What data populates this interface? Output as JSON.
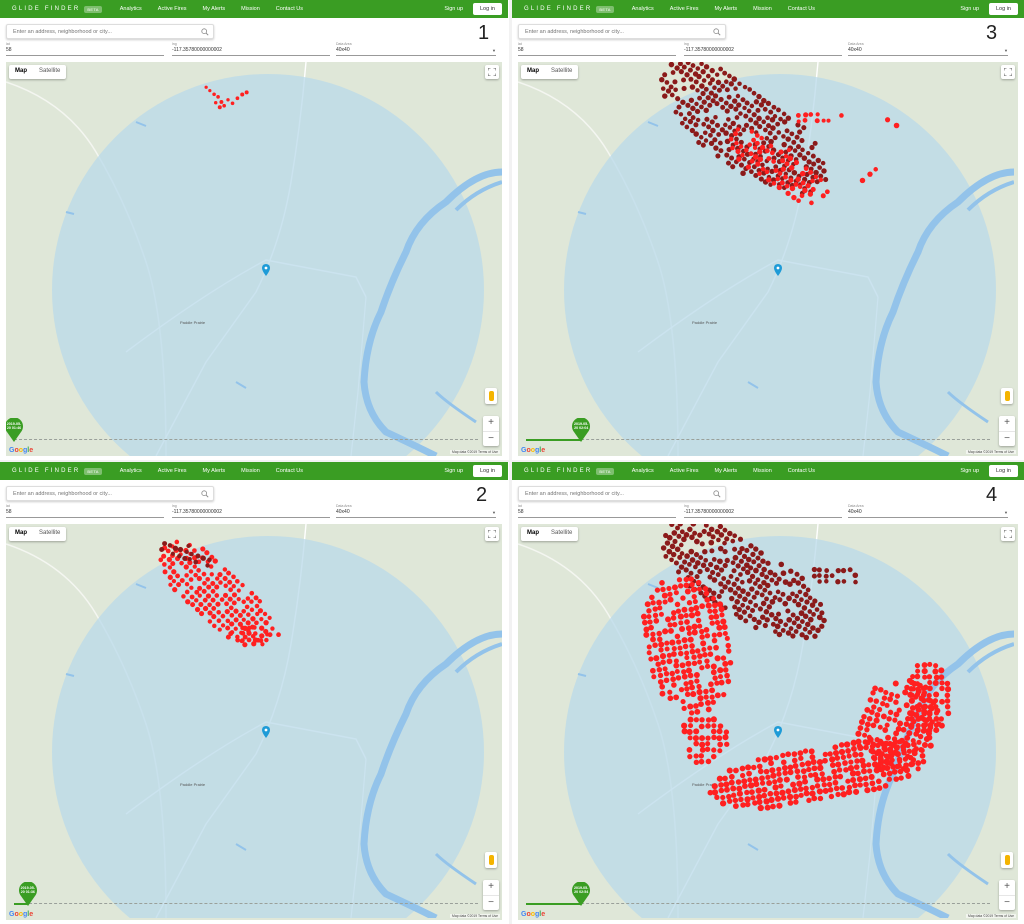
{
  "nav": {
    "brand": "GLIDE FINDER",
    "beta": "BETA",
    "links": [
      "Analytics",
      "Active Fires",
      "My Alerts",
      "Mission",
      "Contact Us"
    ],
    "signup": "Sign up",
    "login": "Log in"
  },
  "search": {
    "placeholder": "Enter an address, neighborhood or city..."
  },
  "fields": {
    "lat_label": "lat",
    "lat_value": "58",
    "lng_label": "lng",
    "lng_value": "-117.35780000000002",
    "size_label": "Data Area",
    "size_value": "40x40"
  },
  "map": {
    "types": [
      "Map",
      "Satellite"
    ],
    "town_label": "Paddle Prairie",
    "attribution": "Map data ©2019    Terms of Use",
    "google": [
      "G",
      "o",
      "o",
      "g",
      "l",
      "e"
    ],
    "water_color": "#a6c8e8",
    "circle_color": "#b9d9ea",
    "land_color": "#dfe7d8",
    "fire_recent_color": "#ff2020",
    "fire_old_color": "#8b1a1a",
    "accent_green": "#3a9d23"
  },
  "panels": [
    {
      "number": "1",
      "timestamp": [
        "2019-05-",
        "20 01:46"
      ],
      "slider_progress": 0.0,
      "fire_stage": 1
    },
    {
      "number": "3",
      "timestamp": [
        "2019-05-",
        "20 02:04"
      ],
      "slider_progress": 0.12,
      "fire_stage": 3
    },
    {
      "number": "2",
      "timestamp": [
        "2019-05-",
        "20 01:36"
      ],
      "slider_progress": 0.03,
      "fire_stage": 2
    },
    {
      "number": "4",
      "timestamp": [
        "2019-05-",
        "20 02:54"
      ],
      "slider_progress": 0.12,
      "fire_stage": 4
    }
  ],
  "icons": [
    "search-icon",
    "fullscreen-icon",
    "pegman-icon",
    "zoom-in-icon",
    "zoom-out-icon",
    "map-pin-icon",
    "timeline-thumb-icon"
  ]
}
